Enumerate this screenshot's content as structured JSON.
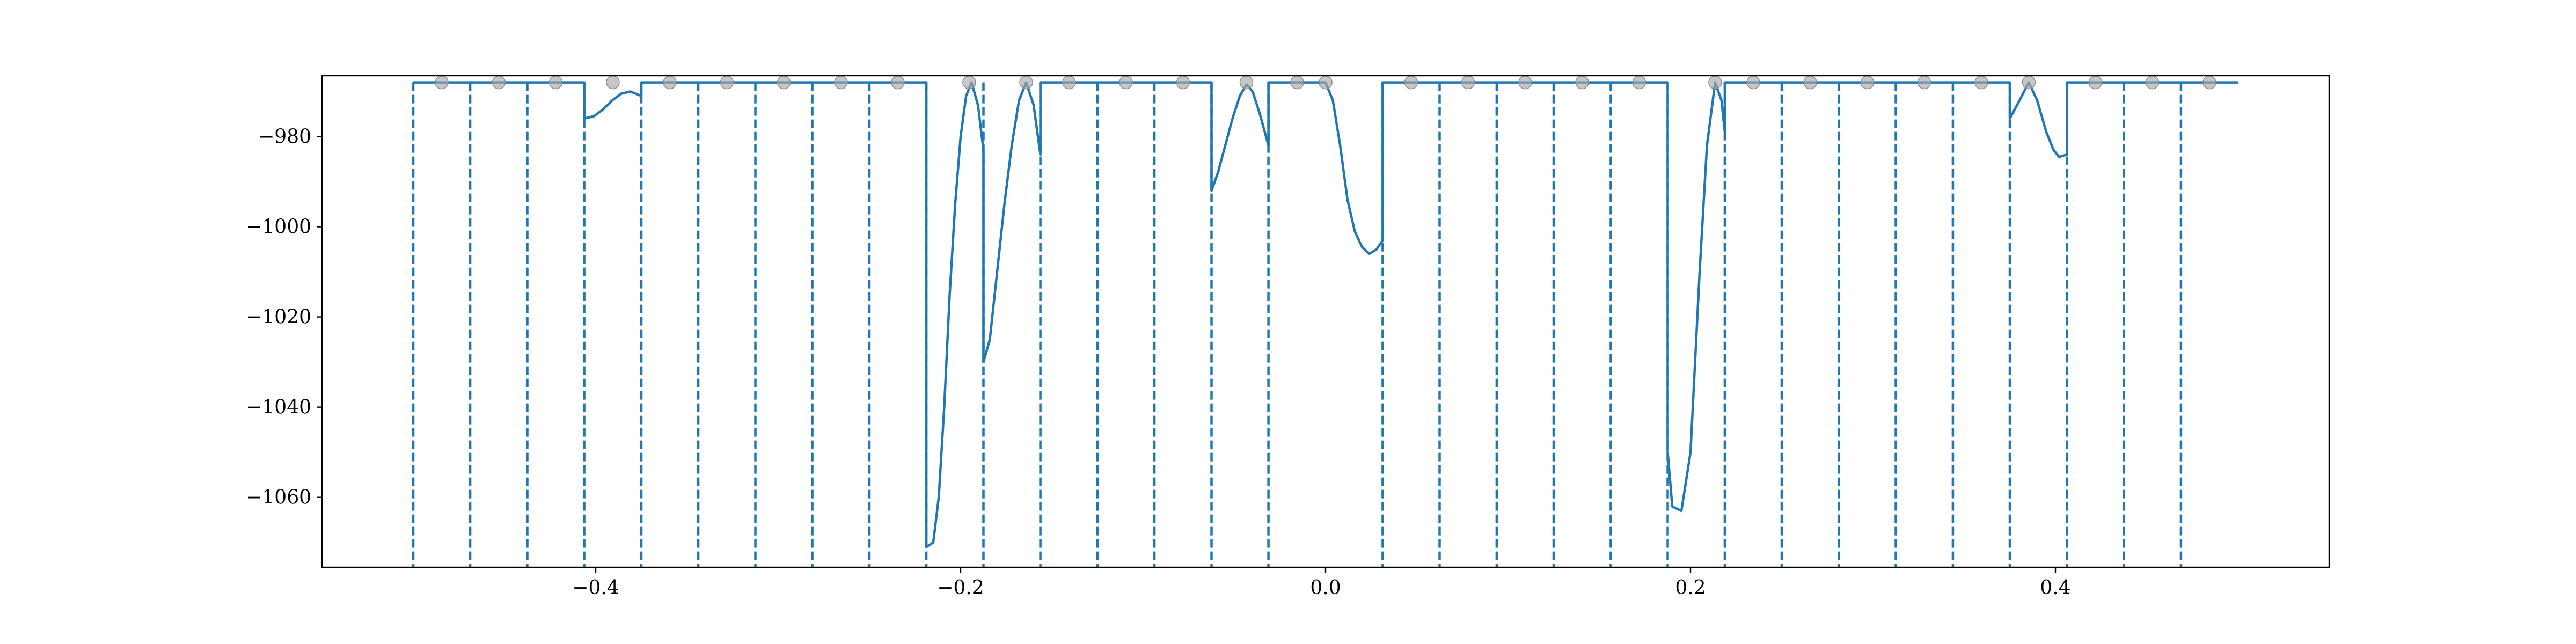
{
  "chart_data": {
    "type": "line",
    "title": "",
    "xlabel": "",
    "ylabel": "",
    "xlim": [
      -0.55,
      0.55
    ],
    "ylim": [
      -1075.5,
      -966.5
    ],
    "grid": false,
    "legend": "none",
    "x_ticks": [
      {
        "value": -0.4,
        "label": "−0.4"
      },
      {
        "value": -0.2,
        "label": "−0.2"
      },
      {
        "value": 0.0,
        "label": "0.0"
      },
      {
        "value": 0.2,
        "label": "0.2"
      },
      {
        "value": 0.4,
        "label": "0.4"
      }
    ],
    "y_ticks": [
      {
        "value": -980,
        "label": "−980"
      },
      {
        "value": -1000,
        "label": "−1000"
      },
      {
        "value": -1020,
        "label": "−1020"
      },
      {
        "value": -1040,
        "label": "−1040"
      },
      {
        "value": -1060,
        "label": "−1060"
      }
    ],
    "colors": {
      "line": "#1f77b4",
      "dashed": "#1f77b4",
      "markers": "#a9a9a9",
      "axes": "#000000"
    },
    "boundaries": [
      -0.5,
      -0.4688,
      -0.4375,
      -0.4063,
      -0.375,
      -0.3438,
      -0.3125,
      -0.2813,
      -0.25,
      -0.2188,
      -0.1875,
      -0.1563,
      -0.125,
      -0.0938,
      -0.0625,
      -0.0313,
      0.0313,
      0.0625,
      0.0938,
      0.125,
      0.1563,
      0.1875,
      0.2188,
      0.25,
      0.2813,
      0.3125,
      0.3438,
      0.375,
      0.4063,
      0.4375,
      0.4688
    ],
    "markers": {
      "y": -968,
      "x": [
        -0.4844,
        -0.4531,
        -0.4219,
        -0.3906,
        -0.3594,
        -0.3281,
        -0.2969,
        -0.2656,
        -0.2344,
        -0.1953,
        -0.1641,
        -0.1406,
        -0.1094,
        -0.0781,
        -0.0434,
        -0.0156,
        0.0,
        0.0469,
        0.0781,
        0.1094,
        0.1406,
        0.1719,
        0.2135,
        0.2344,
        0.2656,
        0.2969,
        0.3281,
        0.3594,
        0.3854,
        0.4219,
        0.4531,
        0.4844
      ]
    },
    "series": [
      {
        "points": [
          [
            -0.5,
            -968
          ],
          [
            -0.4063,
            -968
          ],
          [
            -0.4063,
            -976
          ],
          [
            -0.401,
            -975.5
          ],
          [
            -0.396,
            -974
          ],
          [
            -0.391,
            -972
          ],
          [
            -0.386,
            -970.5
          ],
          [
            -0.381,
            -970
          ],
          [
            -0.375,
            -971
          ],
          [
            -0.375,
            -968
          ],
          [
            -0.2188,
            -968
          ],
          [
            -0.2188,
            -1071
          ],
          [
            -0.215,
            -1070
          ],
          [
            -0.212,
            -1060
          ],
          [
            -0.209,
            -1040
          ],
          [
            -0.206,
            -1015
          ],
          [
            -0.203,
            -995
          ],
          [
            -0.2,
            -980
          ],
          [
            -0.197,
            -971
          ],
          [
            -0.194,
            -968
          ],
          [
            -0.1905,
            -973
          ],
          [
            -0.1875,
            -983
          ],
          [
            -0.1875,
            -1030
          ],
          [
            -0.184,
            -1025
          ],
          [
            -0.18,
            -1010
          ],
          [
            -0.176,
            -995
          ],
          [
            -0.172,
            -982
          ],
          [
            -0.168,
            -972
          ],
          [
            -0.1641,
            -968
          ],
          [
            -0.16,
            -973
          ],
          [
            -0.1563,
            -984
          ],
          [
            -0.1563,
            -968
          ],
          [
            -0.0625,
            -968
          ],
          [
            -0.0625,
            -992
          ],
          [
            -0.059,
            -988
          ],
          [
            -0.055,
            -982
          ],
          [
            -0.051,
            -976
          ],
          [
            -0.047,
            -971
          ],
          [
            -0.0434,
            -968.5
          ],
          [
            -0.04,
            -970
          ],
          [
            -0.036,
            -975
          ],
          [
            -0.0313,
            -982
          ],
          [
            -0.0313,
            -968
          ],
          [
            0.0,
            -968
          ],
          [
            0.004,
            -972
          ],
          [
            0.008,
            -982
          ],
          [
            0.012,
            -994
          ],
          [
            0.016,
            -1001
          ],
          [
            0.02,
            -1004.5
          ],
          [
            0.024,
            -1006
          ],
          [
            0.028,
            -1005
          ],
          [
            0.0313,
            -1003
          ],
          [
            0.0313,
            -998
          ],
          [
            0.0313,
            -968
          ],
          [
            0.1875,
            -968
          ],
          [
            0.1875,
            -1050
          ],
          [
            0.19,
            -1062
          ],
          [
            0.195,
            -1063
          ],
          [
            0.2,
            -1050
          ],
          [
            0.205,
            -1010
          ],
          [
            0.209,
            -982
          ],
          [
            0.2135,
            -968
          ],
          [
            0.217,
            -972
          ],
          [
            0.2188,
            -979
          ],
          [
            0.2188,
            -968
          ],
          [
            0.375,
            -968
          ],
          [
            0.375,
            -976
          ],
          [
            0.379,
            -973
          ],
          [
            0.3854,
            -968
          ],
          [
            0.39,
            -972
          ],
          [
            0.395,
            -979
          ],
          [
            0.399,
            -983
          ],
          [
            0.402,
            -984.5
          ],
          [
            0.4063,
            -984
          ],
          [
            0.4063,
            -968
          ],
          [
            0.5,
            -968
          ]
        ]
      }
    ]
  }
}
